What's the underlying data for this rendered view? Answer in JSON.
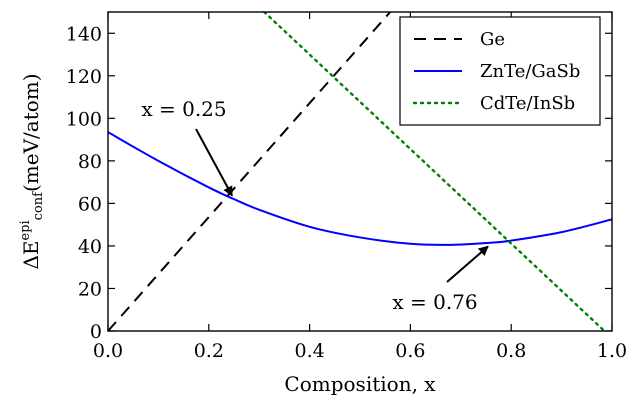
{
  "chart_data": {
    "type": "line",
    "xlabel": "Composition, x",
    "ylabel": {
      "prefix": "ΔE",
      "superscript": "epi",
      "subscript": "conf",
      "units": "(meV/atom)"
    },
    "xlim": [
      0.0,
      1.0
    ],
    "ylim": [
      0,
      150
    ],
    "xticks": [
      0.0,
      0.2,
      0.4,
      0.6,
      0.8,
      1.0
    ],
    "xtick_labels": [
      "0.0",
      "0.2",
      "0.4",
      "0.6",
      "0.8",
      "1.0"
    ],
    "yticks": [
      0,
      20,
      40,
      60,
      80,
      100,
      120,
      140
    ],
    "ytick_labels": [
      "0",
      "20",
      "40",
      "60",
      "80",
      "100",
      "120",
      "140"
    ],
    "grid": false,
    "legend": "top-right",
    "series": [
      {
        "name": "Ge",
        "color": "#000000",
        "style": "dashed",
        "x": [
          0.0,
          0.56
        ],
        "y": [
          0,
          150
        ]
      },
      {
        "name": "ZnTe/GaSb",
        "color": "#0000ff",
        "style": "solid",
        "x": [
          0.0,
          0.1,
          0.2,
          0.25,
          0.3,
          0.4,
          0.5,
          0.6,
          0.68,
          0.76,
          0.8,
          0.9,
          1.0
        ],
        "y": [
          93.5,
          80.0,
          67.5,
          62.0,
          57.0,
          49.0,
          44.0,
          41.0,
          40.5,
          41.5,
          42.5,
          46.5,
          52.5
        ]
      },
      {
        "name": "CdTe/InSb",
        "color": "#008000",
        "style": "dotted",
        "x": [
          0.31,
          0.985
        ],
        "y": [
          150,
          0
        ]
      }
    ],
    "annotations": [
      {
        "text": "x = 0.25",
        "x": 0.25,
        "y": 62
      },
      {
        "text": "x = 0.76",
        "x": 0.76,
        "y": 41
      }
    ]
  }
}
